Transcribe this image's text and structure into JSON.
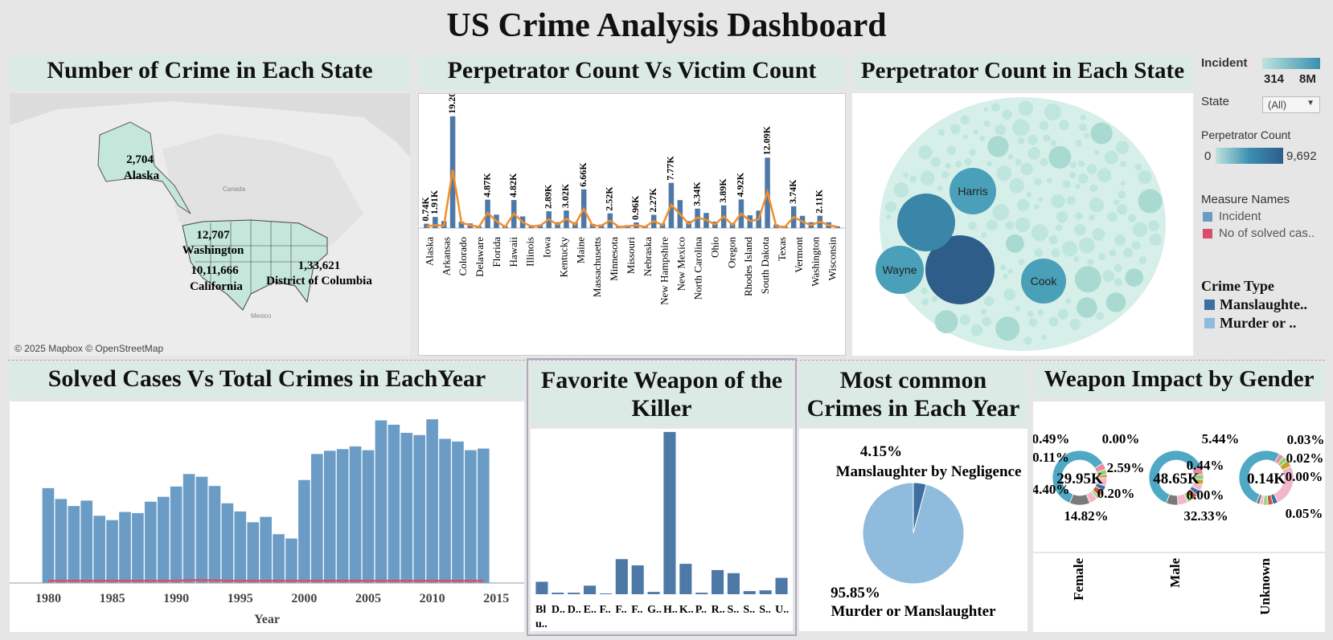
{
  "dashboard": {
    "title": "US Crime Analysis Dashboard"
  },
  "panels": {
    "map": {
      "title": "Number of Crime in Each State",
      "attribution": "© 2025 Mapbox © OpenStreetMap",
      "geo_labels": {
        "canada": "Canada",
        "mexico": "Mexico"
      },
      "state_labels": [
        {
          "value": "2,704",
          "name": "Alaska"
        },
        {
          "value": "12,707",
          "name": "Washington"
        },
        {
          "value": "10,11,666",
          "name": "California"
        },
        {
          "value": "1,33,621",
          "name": "District of Columbia"
        }
      ]
    },
    "perp_vs_victim": {
      "title": "Perpetrator Count Vs Victim Count"
    },
    "bubble": {
      "title": "Perpetrator Count in Each State",
      "labels": [
        "Harris",
        "Wayne",
        "Cook"
      ]
    },
    "solved": {
      "title": "Solved Cases Vs Total Crimes in EachYear",
      "xlabel": "Year"
    },
    "weapon": {
      "title_line1": "Favorite Weapon of the",
      "title_line2": "Killer"
    },
    "common": {
      "title_line1": "Most common",
      "title_line2": "Crimes in Each Year",
      "top_pct": "4.15%",
      "top_label": "Manslaughter by Negligence",
      "bottom_pct": "95.85%",
      "bottom_label": "Murder or Manslaughter"
    },
    "gender": {
      "title": "Weapon Impact by Gender"
    }
  },
  "legend": {
    "incident": {
      "label": "Incident",
      "min": "314",
      "max": "8M"
    },
    "state": {
      "label": "State",
      "value": "(All)"
    },
    "perp": {
      "label": "Perpetrator Count",
      "min": "0",
      "max": "9,692"
    },
    "measure": {
      "label": "Measure Names",
      "items": [
        "Incident",
        "No of solved cas.."
      ]
    },
    "crime_type": {
      "label": "Crime Type",
      "items": [
        "Manslaughte..",
        "Murder or .."
      ]
    }
  },
  "colors": {
    "bar": "#4e79a7",
    "bar_light": "#6b9cc6",
    "line": "#f28e2b",
    "solved": "#d94f6a",
    "pie_main": "#8fbbdc",
    "pie_small": "#3e6fa3",
    "teal_light": "#bfe3dc",
    "teal_dark": "#2e5d8a"
  },
  "chart_data": [
    {
      "type": "bar",
      "title": "Perpetrator Count Vs Victim Count",
      "categories": [
        "Alaska",
        "Arkansas",
        "Colorado",
        "Delaware",
        "Florida",
        "Hawaii",
        "Illinois",
        "Iowa",
        "Kentucky",
        "Maine",
        "Massachusetts",
        "Minnesota",
        "Missouri",
        "Nebraska",
        "New Hampshire",
        "New Mexico",
        "North Carolina",
        "Ohio",
        "Oregon",
        "Rhodes Island",
        "South Dakota",
        "Texas",
        "Vermont",
        "Washington",
        "Wisconsin"
      ],
      "data_labels": [
        "0.74K",
        "1.91K",
        "19.20K",
        "4.87K",
        "4.82K",
        "2.89K",
        "3.02K",
        "6.66K",
        "2.52K",
        "0.96K",
        "2.27K",
        "7.77K",
        "3.34K",
        "3.89K",
        "4.92K",
        "12.09K",
        "3.74K",
        "2.11K"
      ],
      "bar_values": [
        0.74,
        1.91,
        1.2,
        19.2,
        1.1,
        0.8,
        0.3,
        4.87,
        2.3,
        0.3,
        4.82,
        2.0,
        0.5,
        0.6,
        2.89,
        1.0,
        3.02,
        1.0,
        6.66,
        0.7,
        0.6,
        2.52,
        0.3,
        0.5,
        0.96,
        0.3,
        2.27,
        0.8,
        7.77,
        4.8,
        1.2,
        3.34,
        2.6,
        1.1,
        3.89,
        0.9,
        4.92,
        2.2,
        3.0,
        12.09,
        0.6,
        0.3,
        3.74,
        2.1,
        1.0,
        2.11,
        1.0,
        0.3
      ],
      "line_values": [
        0.3,
        0.5,
        0.4,
        10.0,
        0.9,
        0.5,
        0.2,
        2.6,
        1.2,
        0.2,
        2.5,
        1.0,
        0.3,
        0.4,
        1.5,
        0.6,
        1.6,
        0.6,
        3.3,
        0.4,
        0.4,
        1.3,
        0.2,
        0.3,
        0.5,
        0.2,
        1.2,
        0.5,
        4.0,
        2.4,
        0.7,
        1.8,
        1.4,
        0.6,
        2.0,
        0.5,
        2.5,
        1.2,
        1.5,
        6.2,
        0.3,
        0.2,
        1.9,
        1.1,
        0.5,
        1.1,
        0.5,
        0.2
      ],
      "ylim": [
        0,
        20
      ]
    },
    {
      "type": "bar",
      "title": "Solved Cases Vs Total Crimes in EachYear",
      "xlabel": "Year",
      "x": [
        1980,
        1981,
        1982,
        1983,
        1984,
        1985,
        1986,
        1987,
        1988,
        1989,
        1990,
        1991,
        1992,
        1993,
        1994,
        1995,
        1996,
        1997,
        1998,
        1999,
        2000,
        2001,
        2002,
        2003,
        2004,
        2005,
        2006,
        2007,
        2008,
        2009,
        2010,
        2011,
        2012,
        2013,
        2014
      ],
      "series": [
        {
          "name": "Incident",
          "values": [
            175,
            155,
            142,
            152,
            124,
            116,
            131,
            129,
            150,
            159,
            178,
            201,
            196,
            179,
            147,
            132,
            112,
            122,
            90,
            82,
            190,
            238,
            244,
            247,
            252,
            245,
            300,
            292,
            277,
            273,
            302,
            266,
            261,
            245,
            248
          ]
        },
        {
          "name": "No of solved cas..",
          "values": [
            4,
            4,
            4,
            4,
            4,
            4,
            4,
            4,
            4,
            4,
            4,
            5,
            5,
            5,
            4,
            4,
            4,
            4,
            4,
            4,
            4,
            4,
            4,
            4,
            4,
            4,
            4,
            4,
            4,
            4,
            4,
            4,
            4,
            4,
            4
          ]
        }
      ],
      "xticks": [
        "1980",
        "1985",
        "1990",
        "1995",
        "2000",
        "2005",
        "2010",
        "2015"
      ],
      "ylim": [
        0,
        320
      ]
    },
    {
      "type": "bar",
      "title": "Favorite Weapon of the Killer",
      "categories": [
        "Bl u..",
        "D..",
        "D..",
        "E..",
        "F..",
        "F..",
        "F..",
        "G..",
        "H..",
        "K..",
        "P..",
        "R..",
        "S..",
        "S..",
        "S..",
        "U.."
      ],
      "values": [
        16,
        2,
        2,
        11,
        1,
        45,
        37,
        3,
        208,
        39,
        2,
        31,
        27,
        4,
        5,
        21
      ],
      "ylim": [
        0,
        210
      ]
    },
    {
      "type": "pie",
      "title": "Most common Crimes in Each Year",
      "categories": [
        "Manslaughter by Negligence",
        "Murder or Manslaughter"
      ],
      "values": [
        4.15,
        95.85
      ]
    },
    {
      "type": "pie",
      "title": "Weapon Impact by Gender",
      "categories": [
        "Female",
        "Male",
        "Unknown"
      ],
      "center_labels": [
        "29.95K",
        "48.65K",
        "0.14K"
      ],
      "pct_labels": [
        [
          "0.49%",
          "0.00%",
          "0.11%",
          "2.59%",
          "4.40%",
          "0.20%",
          "14.82%"
        ],
        [
          "5.44%",
          "0.44%",
          "0.00%",
          "32.33%"
        ],
        [
          "0.03%",
          "0.02%",
          "0.00%",
          "0.05%"
        ]
      ]
    },
    {
      "type": "scatter",
      "title": "Perpetrator Count in Each State",
      "series": [
        {
          "name": "Perpetrator Count",
          "values": [
            "Harris",
            "Wayne",
            "Cook"
          ]
        }
      ]
    }
  ]
}
